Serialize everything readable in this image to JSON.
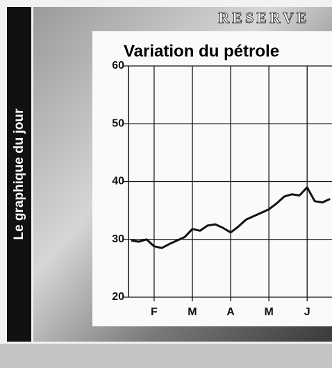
{
  "sidebar_label": "Le graphique du jour",
  "background_text": "RESERVE",
  "chart_data": {
    "type": "line",
    "title": "Variation du pétrole",
    "x": [
      0.4,
      0.6,
      0.8,
      1.0,
      1.2,
      1.4,
      1.6,
      1.8,
      2.0,
      2.2,
      2.4,
      2.6,
      2.8,
      3.0,
      3.2,
      3.4,
      3.6,
      3.8,
      4.0,
      4.2,
      4.4,
      4.6,
      4.8,
      5.0,
      5.2,
      5.4,
      5.6
    ],
    "series": [
      {
        "color": "#111111",
        "values": [
          29.8,
          29.6,
          30,
          28.8,
          28.5,
          29.2,
          29.8,
          30.4,
          31.8,
          31.5,
          32.4,
          32.6,
          32,
          31.2,
          32.2,
          33.4,
          34,
          34.6,
          35.2,
          36.2,
          37.4,
          37.8,
          37.6,
          39,
          36.6,
          36.4,
          37
        ]
      }
    ],
    "xlim": [
      0.33,
      5.65
    ],
    "xticks": [
      {
        "value": 1,
        "label": "F"
      },
      {
        "value": 2,
        "label": "M"
      },
      {
        "value": 3,
        "label": "A"
      },
      {
        "value": 4,
        "label": "M"
      },
      {
        "value": 5,
        "label": "J"
      }
    ],
    "ylim": [
      20,
      60
    ],
    "yticks": [
      20,
      30,
      40,
      50,
      60
    ],
    "grid": true
  }
}
